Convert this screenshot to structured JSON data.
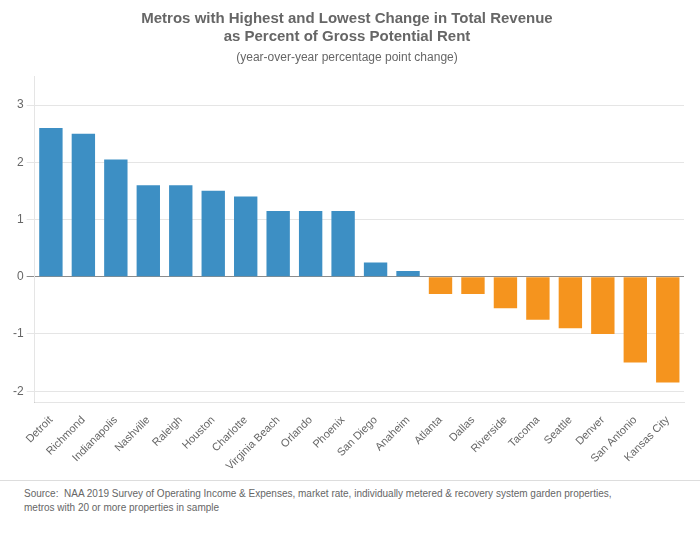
{
  "chart_data": {
    "type": "bar",
    "title": "Metros with Highest and Lowest Change in Total Revenue\nas Percent of Gross Potential Rent",
    "subtitle": "(year-over-year percentage point change)",
    "caption": "Source:  NAA 2019 Survey of Operating Income & Expenses, market rate, individually metered & recovery system garden properties,\nmetros with 20 or more properties in sample",
    "categories": [
      "Detroit",
      "Richmond",
      "Indianapolis",
      "Nashville",
      "Raleigh",
      "Houston",
      "Charlotte",
      "Virginia Beach",
      "Orlando",
      "Phoenix",
      "San Diego",
      "Anaheim",
      "Atlanta",
      "Dallas",
      "Riverside",
      "Tacoma",
      "Seattle",
      "Denver",
      "San Antonio",
      "Kansas City"
    ],
    "values": [
      2.6,
      2.5,
      2.05,
      1.6,
      1.6,
      1.5,
      1.4,
      1.15,
      1.15,
      1.15,
      0.25,
      0.1,
      -0.3,
      -0.3,
      -0.55,
      -0.75,
      -0.9,
      -1.0,
      -1.5,
      -1.85
    ],
    "colors": [
      "#3d8fc4",
      "#3d8fc4",
      "#3d8fc4",
      "#3d8fc4",
      "#3d8fc4",
      "#3d8fc4",
      "#3d8fc4",
      "#3d8fc4",
      "#3d8fc4",
      "#3d8fc4",
      "#3d8fc4",
      "#3d8fc4",
      "#f5941e",
      "#f5941e",
      "#f5941e",
      "#f5941e",
      "#f5941e",
      "#f5941e",
      "#f5941e",
      "#f5941e"
    ],
    "ylim": [
      -2.2,
      3.5
    ],
    "yticks": [
      -2,
      -1,
      0,
      1,
      2,
      3
    ],
    "grid": true
  }
}
